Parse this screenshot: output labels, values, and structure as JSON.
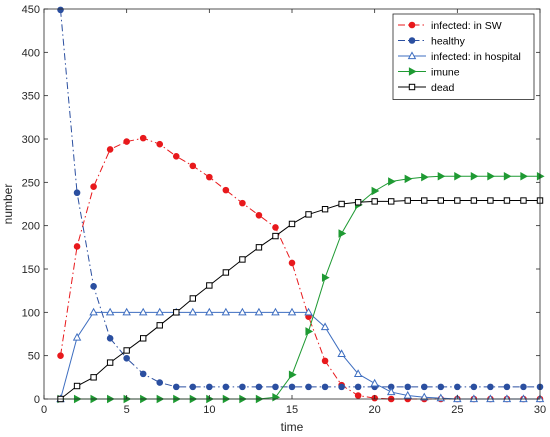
{
  "chart_data": {
    "type": "line",
    "title": "",
    "xlabel": "time",
    "ylabel": "number",
    "xlim": [
      0,
      30
    ],
    "ylim": [
      0,
      450
    ],
    "xticks": [
      0,
      5,
      10,
      15,
      20,
      25,
      30
    ],
    "yticks": [
      0,
      50,
      100,
      150,
      200,
      250,
      300,
      350,
      400,
      450
    ],
    "grid": false,
    "legend_position": "top-right",
    "x": [
      1,
      2,
      3,
      4,
      5,
      6,
      7,
      8,
      9,
      10,
      11,
      12,
      13,
      14,
      15,
      16,
      17,
      18,
      19,
      20,
      21,
      22,
      23,
      24,
      25,
      26,
      27,
      28,
      29,
      30
    ],
    "series": [
      {
        "name": "infected: in SW",
        "color": "#e8191c",
        "line_style": "dashdot",
        "marker": "circle",
        "marker_filled": true,
        "values": [
          50,
          176,
          245,
          288,
          297,
          301,
          294,
          280,
          269,
          256,
          241,
          226,
          212,
          198,
          157,
          95,
          44,
          16,
          4,
          1,
          0,
          0,
          0,
          0,
          0,
          0,
          0,
          0,
          0,
          0
        ]
      },
      {
        "name": "healthy",
        "color": "#2b4fa0",
        "line_style": "dashdot",
        "marker": "circle",
        "marker_filled": true,
        "values": [
          449,
          238,
          130,
          70,
          47,
          29,
          19,
          14,
          14,
          14,
          14,
          14,
          14,
          14,
          14,
          14,
          14,
          14,
          14,
          14,
          14,
          14,
          14,
          14,
          14,
          14,
          14,
          14,
          14,
          14
        ]
      },
      {
        "name": "infected: in hospital",
        "color": "#3e6ec0",
        "line_style": "solid",
        "marker": "triangle-up",
        "marker_filled": false,
        "values": [
          0,
          71,
          100,
          100,
          100,
          100,
          100,
          100,
          100,
          100,
          100,
          100,
          100,
          100,
          100,
          100,
          83,
          52,
          29,
          18,
          8,
          4,
          2,
          1,
          0,
          0,
          0,
          0,
          0,
          0
        ]
      },
      {
        "name": "imune",
        "color": "#1f9a33",
        "line_style": "solid",
        "marker": "triangle-right",
        "marker_filled": true,
        "values": [
          0,
          0,
          0,
          0,
          0,
          0,
          0,
          0,
          0,
          0,
          0,
          0,
          0,
          2,
          28,
          78,
          140,
          191,
          224,
          240,
          251,
          254,
          256,
          257,
          257,
          257,
          257,
          257,
          257,
          257
        ]
      },
      {
        "name": "dead",
        "color": "#000000",
        "line_style": "solid",
        "marker": "square",
        "marker_filled": false,
        "values": [
          0,
          15,
          25,
          42,
          56,
          70,
          85,
          100,
          116,
          131,
          146,
          161,
          175,
          188,
          202,
          213,
          219,
          225,
          227,
          228,
          228,
          229,
          229,
          229,
          229,
          229,
          229,
          229,
          229,
          229
        ]
      }
    ]
  }
}
